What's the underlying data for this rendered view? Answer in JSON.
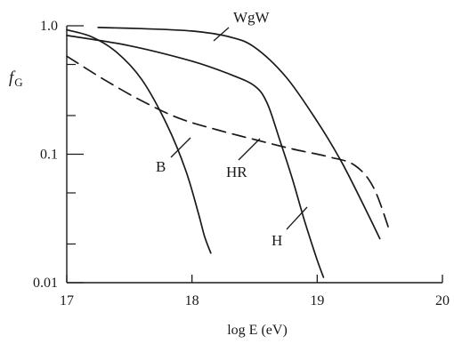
{
  "chart_data": {
    "type": "line",
    "xlabel": "log E (eV)",
    "ylabel": "f",
    "ylabel_sub": "G",
    "xlim": [
      17,
      20
    ],
    "ylim": [
      0.01,
      1.0
    ],
    "yscale": "log",
    "x_ticks": [
      "17",
      "18",
      "19",
      "20"
    ],
    "y_ticks": [
      "1.0",
      "0.1",
      "0.01"
    ],
    "grid": false,
    "legend": "inline labels with leader lines",
    "series": [
      {
        "name": "WgW",
        "style": "solid",
        "x": [
          17.25,
          17.6,
          18.0,
          18.3,
          18.5,
          18.75,
          19.0,
          19.2,
          19.4,
          19.5
        ],
        "y": [
          0.97,
          0.95,
          0.91,
          0.82,
          0.68,
          0.4,
          0.18,
          0.085,
          0.035,
          0.022
        ]
      },
      {
        "name": "B",
        "style": "solid",
        "x": [
          17.0,
          17.2,
          17.4,
          17.6,
          17.8,
          17.95,
          18.05,
          18.1,
          18.15
        ],
        "y": [
          0.93,
          0.82,
          0.62,
          0.38,
          0.17,
          0.075,
          0.035,
          0.023,
          0.017
        ]
      },
      {
        "name": "H",
        "style": "solid",
        "x": [
          17.0,
          17.5,
          18.0,
          18.3,
          18.5,
          18.6,
          18.7,
          18.8,
          18.9,
          19.0,
          19.05
        ],
        "y": [
          0.84,
          0.7,
          0.53,
          0.42,
          0.34,
          0.25,
          0.13,
          0.065,
          0.03,
          0.015,
          0.011
        ]
      },
      {
        "name": "HR",
        "style": "dashed",
        "x": [
          17.0,
          17.3,
          17.6,
          17.9,
          18.2,
          18.5,
          18.8,
          19.1,
          19.3,
          19.45,
          19.58
        ],
        "y": [
          0.58,
          0.38,
          0.26,
          0.19,
          0.155,
          0.13,
          0.11,
          0.095,
          0.082,
          0.055,
          0.025
        ]
      }
    ],
    "labels": [
      {
        "text": "WgW",
        "series": "WgW"
      },
      {
        "text": "B",
        "series": "B"
      },
      {
        "text": "HR",
        "series": "HR"
      },
      {
        "text": "H",
        "series": "H"
      }
    ],
    "colors": {
      "line": "#1a1a1a"
    }
  }
}
